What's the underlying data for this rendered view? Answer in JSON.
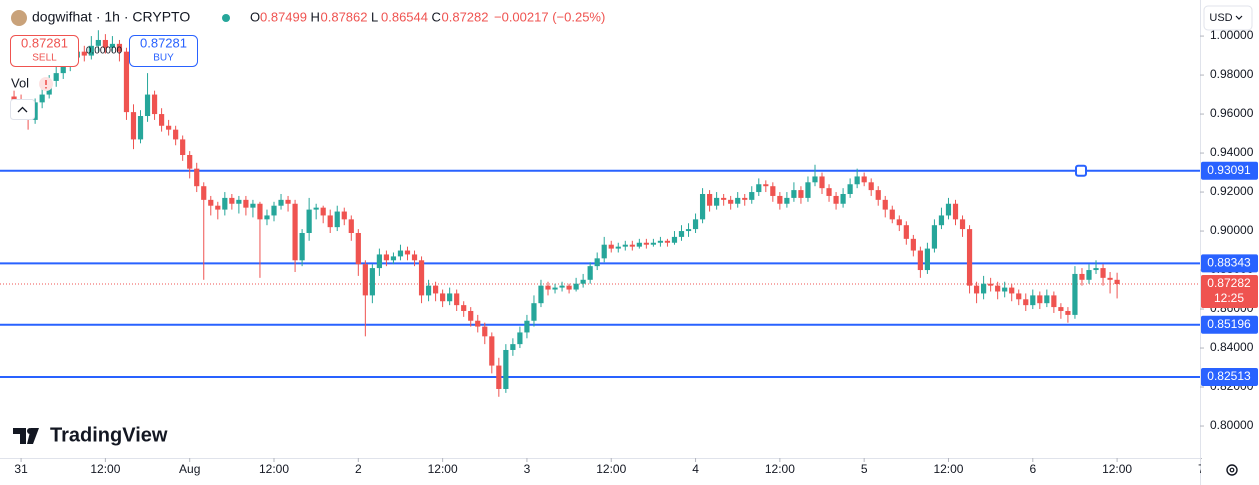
{
  "chart_data": {
    "type": "candlestick",
    "title": "dogwifhat · 1h · CRYPTO",
    "legend": [
      {
        "key": "O",
        "value": 0.87499
      },
      {
        "key": "H",
        "value": 0.87862
      },
      {
        "key": "L",
        "value": 0.86544
      },
      {
        "key": "C",
        "value": 0.87282
      }
    ],
    "change": "−0.00217 (−0.25%)",
    "trade": {
      "sell_price": 0.87281,
      "sell_label": "SELL",
      "spread": "0.00000",
      "buy_price": 0.87281,
      "buy_label": "BUY"
    },
    "volume_label": "Vol",
    "currency": "USD",
    "brand": "TradingView",
    "up_color": "#26a69a",
    "down_color": "#ef5350",
    "ylim": [
      0.7836,
      1.0185
    ],
    "yticks": [
      {
        "value": 1,
        "label": "1.00000"
      },
      {
        "value": 0.98,
        "label": "0.98000"
      },
      {
        "value": 0.96,
        "label": "0.96000"
      },
      {
        "value": 0.94,
        "label": "0.94000"
      },
      {
        "value": 0.92,
        "label": "0.92000"
      },
      {
        "value": 0.9,
        "label": "0.90000"
      },
      {
        "value": 0.88,
        "label": "0.88000"
      },
      {
        "value": 0.86,
        "label": "0.86000"
      },
      {
        "value": 0.84,
        "label": "0.84000"
      },
      {
        "value": 0.82,
        "label": "0.82000"
      },
      {
        "value": 0.8,
        "label": "0.80000"
      }
    ],
    "xlim": [
      -2,
      168.8
    ],
    "xticks": [
      {
        "value": 1,
        "label": "31"
      },
      {
        "value": 13,
        "label": "12:00"
      },
      {
        "value": 25,
        "label": "Aug"
      },
      {
        "value": 37,
        "label": "12:00"
      },
      {
        "value": 49,
        "label": "2"
      },
      {
        "value": 61,
        "label": "12:00"
      },
      {
        "value": 73,
        "label": "3"
      },
      {
        "value": 85,
        "label": "12:00"
      },
      {
        "value": 97,
        "label": "4"
      },
      {
        "value": 109,
        "label": "12:00"
      },
      {
        "value": 121,
        "label": "5"
      },
      {
        "value": 133,
        "label": "12:00"
      },
      {
        "value": 145,
        "label": "6"
      },
      {
        "value": 157,
        "label": "12:00"
      },
      {
        "value": 169,
        "label": "7"
      }
    ],
    "hline_color": "#2962ff",
    "hlines": [
      0.93091,
      0.88343,
      0.85196,
      0.82513
    ],
    "last_price": {
      "value": 0.87282,
      "countdown": "12:25"
    },
    "candles": [
      [
        0.969,
        0.972,
        0.964,
        0.967
      ],
      [
        0.967,
        0.97,
        0.959,
        0.964
      ],
      [
        0.964,
        0.966,
        0.952,
        0.957
      ],
      [
        0.957,
        0.968,
        0.955,
        0.966
      ],
      [
        0.966,
        0.973,
        0.963,
        0.97
      ],
      [
        0.97,
        0.98,
        0.968,
        0.977
      ],
      [
        0.977,
        0.986,
        0.974,
        0.981
      ],
      [
        0.981,
        0.989,
        0.978,
        0.985
      ],
      [
        0.985,
        0.993,
        0.982,
        0.989
      ],
      [
        0.989,
        0.996,
        0.986,
        0.992
      ],
      [
        0.992,
        0.995,
        0.987,
        0.99
      ],
      [
        0.99,
        1.0,
        0.988,
        0.995
      ],
      [
        0.995,
        1.003,
        0.992,
        0.998
      ],
      [
        0.998,
        1.001,
        0.991,
        0.994
      ],
      [
        0.994,
        1.0,
        0.992,
        0.996
      ],
      [
        0.996,
        0.998,
        0.987,
        0.992
      ],
      [
        0.992,
        0.994,
        0.957,
        0.961
      ],
      [
        0.961,
        0.965,
        0.942,
        0.947
      ],
      [
        0.947,
        0.962,
        0.945,
        0.959
      ],
      [
        0.959,
        0.981,
        0.956,
        0.97
      ],
      [
        0.97,
        0.972,
        0.957,
        0.96
      ],
      [
        0.96,
        0.963,
        0.951,
        0.954
      ],
      [
        0.954,
        0.957,
        0.949,
        0.952
      ],
      [
        0.952,
        0.954,
        0.944,
        0.947
      ],
      [
        0.947,
        0.949,
        0.936,
        0.939
      ],
      [
        0.939,
        0.941,
        0.927,
        0.932
      ],
      [
        0.932,
        0.935,
        0.92,
        0.923
      ],
      [
        0.923,
        0.925,
        0.875,
        0.916
      ],
      [
        0.916,
        0.918,
        0.908,
        0.913
      ],
      [
        0.913,
        0.915,
        0.906,
        0.911
      ],
      [
        0.911,
        0.92,
        0.908,
        0.917
      ],
      [
        0.917,
        0.919,
        0.911,
        0.914
      ],
      [
        0.914,
        0.918,
        0.909,
        0.916
      ],
      [
        0.916,
        0.918,
        0.908,
        0.912
      ],
      [
        0.912,
        0.916,
        0.907,
        0.914
      ],
      [
        0.914,
        0.915,
        0.876,
        0.906
      ],
      [
        0.906,
        0.911,
        0.903,
        0.908
      ],
      [
        0.908,
        0.915,
        0.905,
        0.913
      ],
      [
        0.913,
        0.919,
        0.911,
        0.916
      ],
      [
        0.916,
        0.918,
        0.91,
        0.914
      ],
      [
        0.914,
        0.916,
        0.879,
        0.885
      ],
      [
        0.885,
        0.901,
        0.882,
        0.899
      ],
      [
        0.899,
        0.917,
        0.895,
        0.911
      ],
      [
        0.911,
        0.914,
        0.906,
        0.912
      ],
      [
        0.912,
        0.913,
        0.904,
        0.908
      ],
      [
        0.908,
        0.911,
        0.899,
        0.902
      ],
      [
        0.902,
        0.913,
        0.9,
        0.91
      ],
      [
        0.91,
        0.912,
        0.903,
        0.906
      ],
      [
        0.906,
        0.908,
        0.895,
        0.899
      ],
      [
        0.899,
        0.901,
        0.877,
        0.883
      ],
      [
        0.883,
        0.885,
        0.846,
        0.867
      ],
      [
        0.867,
        0.883,
        0.863,
        0.881
      ],
      [
        0.881,
        0.891,
        0.877,
        0.888
      ],
      [
        0.888,
        0.89,
        0.882,
        0.885
      ],
      [
        0.885,
        0.889,
        0.883,
        0.887
      ],
      [
        0.887,
        0.893,
        0.885,
        0.89
      ],
      [
        0.89,
        0.892,
        0.885,
        0.888
      ],
      [
        0.888,
        0.89,
        0.882,
        0.885
      ],
      [
        0.885,
        0.887,
        0.863,
        0.867
      ],
      [
        0.867,
        0.875,
        0.864,
        0.872
      ],
      [
        0.872,
        0.874,
        0.864,
        0.868
      ],
      [
        0.868,
        0.87,
        0.861,
        0.864
      ],
      [
        0.864,
        0.871,
        0.862,
        0.868
      ],
      [
        0.868,
        0.87,
        0.859,
        0.862
      ],
      [
        0.862,
        0.864,
        0.856,
        0.859
      ],
      [
        0.859,
        0.861,
        0.851,
        0.854
      ],
      [
        0.854,
        0.857,
        0.848,
        0.851
      ],
      [
        0.851,
        0.853,
        0.842,
        0.846
      ],
      [
        0.846,
        0.848,
        0.827,
        0.831
      ],
      [
        0.831,
        0.835,
        0.815,
        0.819
      ],
      [
        0.819,
        0.842,
        0.817,
        0.839
      ],
      [
        0.839,
        0.845,
        0.836,
        0.842
      ],
      [
        0.842,
        0.851,
        0.84,
        0.848
      ],
      [
        0.848,
        0.857,
        0.845,
        0.854
      ],
      [
        0.854,
        0.867,
        0.851,
        0.863
      ],
      [
        0.863,
        0.875,
        0.861,
        0.872
      ],
      [
        0.872,
        0.874,
        0.867,
        0.87
      ],
      [
        0.87,
        0.873,
        0.868,
        0.871
      ],
      [
        0.871,
        0.874,
        0.869,
        0.872
      ],
      [
        0.872,
        0.873,
        0.868,
        0.87
      ],
      [
        0.87,
        0.876,
        0.869,
        0.873
      ],
      [
        0.873,
        0.878,
        0.871,
        0.875
      ],
      [
        0.875,
        0.884,
        0.873,
        0.882
      ],
      [
        0.882,
        0.889,
        0.88,
        0.886
      ],
      [
        0.886,
        0.897,
        0.884,
        0.893
      ],
      [
        0.893,
        0.895,
        0.889,
        0.891
      ],
      [
        0.891,
        0.894,
        0.889,
        0.892
      ],
      [
        0.892,
        0.895,
        0.89,
        0.893
      ],
      [
        0.893,
        0.895,
        0.89,
        0.892
      ],
      [
        0.892,
        0.896,
        0.891,
        0.894
      ],
      [
        0.894,
        0.896,
        0.891,
        0.893
      ],
      [
        0.893,
        0.896,
        0.892,
        0.894
      ],
      [
        0.894,
        0.897,
        0.892,
        0.895
      ],
      [
        0.895,
        0.896,
        0.892,
        0.894
      ],
      [
        0.894,
        0.9,
        0.893,
        0.897
      ],
      [
        0.897,
        0.903,
        0.895,
        0.9
      ],
      [
        0.9,
        0.904,
        0.897,
        0.901
      ],
      [
        0.901,
        0.909,
        0.899,
        0.906
      ],
      [
        0.906,
        0.922,
        0.904,
        0.919
      ],
      [
        0.919,
        0.921,
        0.91,
        0.913
      ],
      [
        0.913,
        0.92,
        0.911,
        0.917
      ],
      [
        0.917,
        0.919,
        0.913,
        0.916
      ],
      [
        0.916,
        0.918,
        0.911,
        0.914
      ],
      [
        0.914,
        0.92,
        0.912,
        0.917
      ],
      [
        0.917,
        0.919,
        0.913,
        0.916
      ],
      [
        0.916,
        0.923,
        0.914,
        0.92
      ],
      [
        0.92,
        0.927,
        0.918,
        0.924
      ],
      [
        0.924,
        0.926,
        0.92,
        0.923
      ],
      [
        0.923,
        0.925,
        0.915,
        0.918
      ],
      [
        0.918,
        0.92,
        0.911,
        0.914
      ],
      [
        0.914,
        0.92,
        0.912,
        0.917
      ],
      [
        0.917,
        0.925,
        0.915,
        0.921
      ],
      [
        0.921,
        0.923,
        0.914,
        0.917
      ],
      [
        0.917,
        0.928,
        0.915,
        0.925
      ],
      [
        0.925,
        0.934,
        0.923,
        0.928
      ],
      [
        0.928,
        0.93,
        0.919,
        0.922
      ],
      [
        0.922,
        0.924,
        0.915,
        0.918
      ],
      [
        0.918,
        0.92,
        0.911,
        0.914
      ],
      [
        0.914,
        0.922,
        0.912,
        0.919
      ],
      [
        0.919,
        0.927,
        0.917,
        0.924
      ],
      [
        0.924,
        0.932,
        0.922,
        0.928
      ],
      [
        0.928,
        0.93,
        0.923,
        0.925
      ],
      [
        0.925,
        0.927,
        0.918,
        0.921
      ],
      [
        0.921,
        0.923,
        0.913,
        0.916
      ],
      [
        0.916,
        0.918,
        0.907,
        0.911
      ],
      [
        0.911,
        0.913,
        0.904,
        0.906
      ],
      [
        0.906,
        0.908,
        0.9,
        0.903
      ],
      [
        0.903,
        0.905,
        0.893,
        0.896
      ],
      [
        0.896,
        0.898,
        0.887,
        0.89
      ],
      [
        0.89,
        0.892,
        0.876,
        0.88
      ],
      [
        0.88,
        0.894,
        0.878,
        0.891
      ],
      [
        0.891,
        0.906,
        0.889,
        0.903
      ],
      [
        0.903,
        0.912,
        0.901,
        0.908
      ],
      [
        0.908,
        0.917,
        0.906,
        0.914
      ],
      [
        0.914,
        0.916,
        0.903,
        0.906
      ],
      [
        0.906,
        0.908,
        0.897,
        0.901
      ],
      [
        0.901,
        0.903,
        0.868,
        0.872
      ],
      [
        0.872,
        0.874,
        0.863,
        0.868
      ],
      [
        0.868,
        0.877,
        0.865,
        0.873
      ],
      [
        0.873,
        0.876,
        0.869,
        0.872
      ],
      [
        0.872,
        0.874,
        0.865,
        0.869
      ],
      [
        0.869,
        0.874,
        0.866,
        0.871
      ],
      [
        0.871,
        0.873,
        0.864,
        0.868
      ],
      [
        0.868,
        0.87,
        0.862,
        0.865
      ],
      [
        0.865,
        0.868,
        0.859,
        0.862
      ],
      [
        0.862,
        0.87,
        0.86,
        0.867
      ],
      [
        0.867,
        0.869,
        0.86,
        0.863
      ],
      [
        0.863,
        0.87,
        0.861,
        0.867
      ],
      [
        0.867,
        0.869,
        0.858,
        0.861
      ],
      [
        0.861,
        0.863,
        0.855,
        0.859
      ],
      [
        0.859,
        0.861,
        0.853,
        0.857
      ],
      [
        0.857,
        0.882,
        0.855,
        0.878
      ],
      [
        0.878,
        0.881,
        0.872,
        0.875
      ],
      [
        0.875,
        0.883,
        0.873,
        0.88
      ],
      [
        0.88,
        0.885,
        0.878,
        0.881
      ],
      [
        0.881,
        0.883,
        0.872,
        0.876
      ],
      [
        0.876,
        0.879,
        0.868,
        0.87499
      ],
      [
        0.87499,
        0.87862,
        0.86544,
        0.87282
      ]
    ]
  }
}
